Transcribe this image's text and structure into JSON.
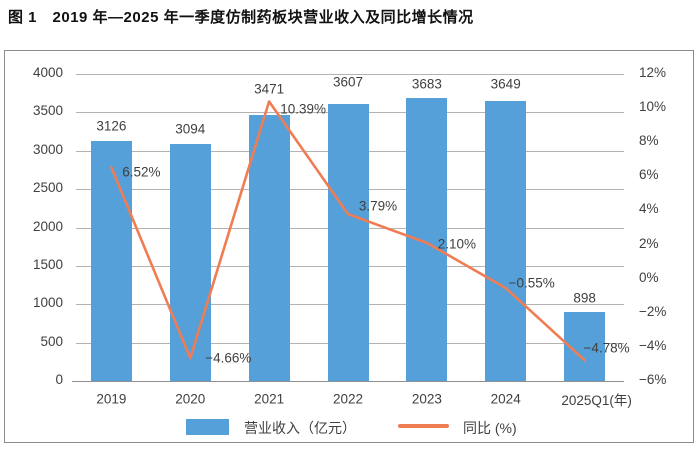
{
  "chart_data": {
    "type": "bar",
    "title": "图 1　2019 年—2025 年一季度仿制药板块营业收入及同比增长情况",
    "categories": [
      "2019",
      "2020",
      "2021",
      "2022",
      "2023",
      "2024",
      "2025Q1"
    ],
    "x_labels": [
      "2019",
      "2020",
      "2021",
      "2022",
      "2023",
      "2024",
      "2025Q1(年)"
    ],
    "series": [
      {
        "name": "营业收入（亿元）",
        "kind": "bar",
        "axis": "left",
        "values": [
          3126,
          3094,
          3471,
          3607,
          3683,
          3649,
          898
        ],
        "labels": [
          "3126",
          "3094",
          "3471",
          "3607",
          "3683",
          "3649",
          "898"
        ]
      },
      {
        "name": "同比 (%)",
        "kind": "line",
        "axis": "right",
        "values": [
          6.52,
          -4.66,
          10.39,
          3.79,
          2.1,
          -0.55,
          -4.78
        ],
        "labels": [
          "6.52%",
          "−4.66%",
          "10.39%",
          "3.79%",
          "2.10%",
          "−0.55%",
          "−4.78%"
        ]
      }
    ],
    "left_axis": {
      "min": 0,
      "max": 4000,
      "step": 500,
      "ticks": [
        "4000",
        "3500",
        "3000",
        "2500",
        "2000",
        "1500",
        "1000",
        "500",
        "0"
      ]
    },
    "right_axis": {
      "min": -6,
      "max": 12,
      "step": 2,
      "ticks": [
        "12%",
        "10%",
        "8%",
        "6%",
        "4%",
        "2%",
        "0%",
        "−2%",
        "−4%",
        "−6%"
      ]
    },
    "grid": true,
    "legend_position": "bottom",
    "colors": {
      "bar": "#55a0d8",
      "line": "#f07c54",
      "grid": "#b3b3b3",
      "axis_line": "#8f8f8f",
      "text": "#404040",
      "frame_border": "#8c8c8c"
    }
  }
}
